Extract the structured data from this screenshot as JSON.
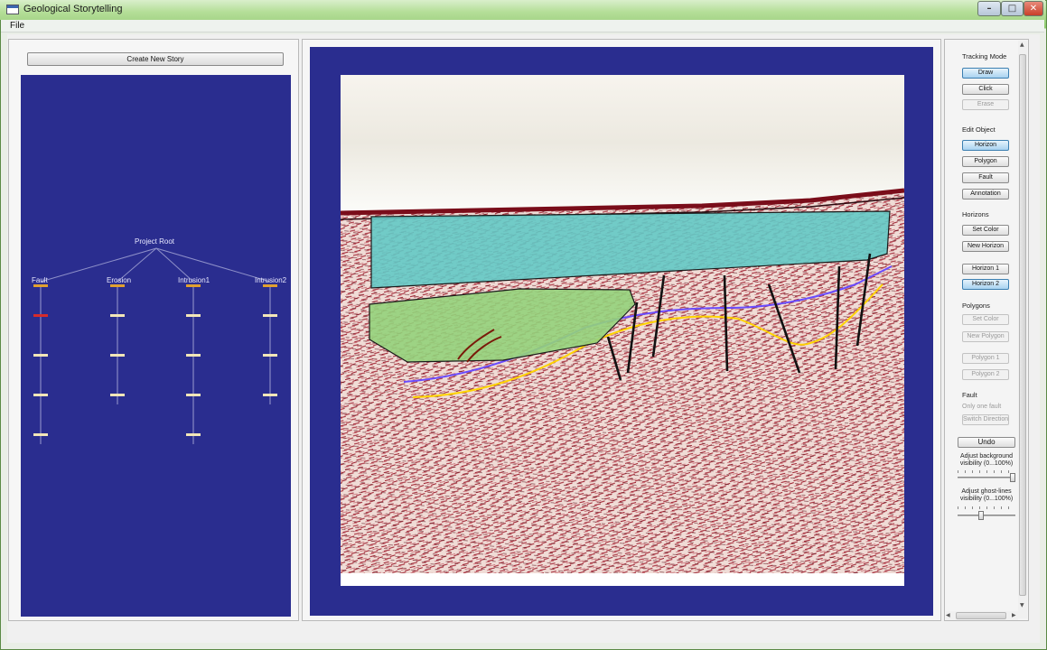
{
  "window": {
    "title": "Geological Storytelling",
    "minimize": "–",
    "maximize": "□",
    "close": "✕"
  },
  "menu": {
    "file": "File"
  },
  "story_panel": {
    "create_button": "Create New Story",
    "tree": {
      "root": "Project Root",
      "branches": [
        {
          "label": "Fault",
          "nodes": 4,
          "highlighted_node": 1
        },
        {
          "label": "Erosion",
          "nodes": 3
        },
        {
          "label": "Intrusion1",
          "nodes": 4
        },
        {
          "label": "Intrusion2",
          "nodes": 3
        }
      ]
    }
  },
  "controls": {
    "tracking_mode": {
      "label": "Tracking Mode",
      "buttons": [
        {
          "label": "Draw",
          "state": "active"
        },
        {
          "label": "Click",
          "state": "normal"
        },
        {
          "label": "Erase",
          "state": "disabled"
        }
      ]
    },
    "edit_object": {
      "label": "Edit Object",
      "buttons": [
        {
          "label": "Horizon",
          "state": "active"
        },
        {
          "label": "Polygon",
          "state": "normal"
        },
        {
          "label": "Fault",
          "state": "normal"
        },
        {
          "label": "Annotation",
          "state": "normal"
        }
      ]
    },
    "horizons": {
      "label": "Horizons",
      "set_color": "Set Color",
      "new": "New Horizon",
      "items": [
        {
          "label": "Horizon 1",
          "state": "normal"
        },
        {
          "label": "Horizon 2",
          "state": "active"
        }
      ]
    },
    "polygons": {
      "label": "Polygons",
      "set_color": "Set Color",
      "new": "New Polygon",
      "items": [
        {
          "label": "Polygon 1",
          "state": "disabled"
        },
        {
          "label": "Polygon 2",
          "state": "disabled"
        }
      ]
    },
    "fault": {
      "label": "Fault",
      "note": "Only one fault",
      "switch": "Switch Direction"
    },
    "undo": "Undo",
    "background_slider": {
      "label": "Adjust background visibility (0...100%)",
      "value": 100
    },
    "ghost_slider": {
      "label": "Adjust ghost-lines visibility (0...100%)",
      "value": 40
    }
  },
  "colors": {
    "canvas_bg": "#2a2d8f",
    "accent_active": "#a8d2f0",
    "horizon_1": "#ffd400",
    "horizon_2": "#6a4cff",
    "polygon_1": "#63c9c5",
    "polygon_2": "#93d17b",
    "fault_line": "#111111",
    "tree_highlight": "#d62b2b",
    "tree_node": "#f2e6b8"
  }
}
